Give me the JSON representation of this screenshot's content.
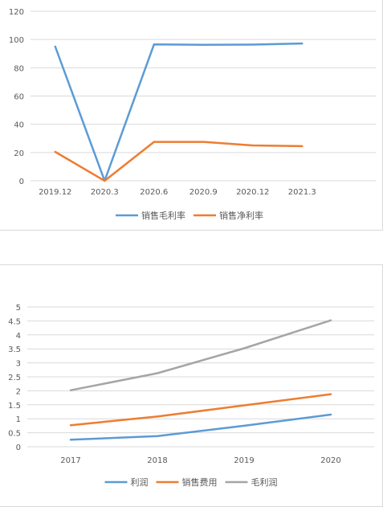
{
  "chart_data": [
    {
      "type": "line",
      "title": "",
      "categories": [
        "2019.12",
        "2020.3",
        "2020.6",
        "2020.9",
        "2020.12",
        "2021.3"
      ],
      "ylim": [
        0,
        120
      ],
      "yticks": [
        "0",
        "20",
        "40",
        "60",
        "80",
        "100",
        "120"
      ],
      "grid": true,
      "legend_position": "bottom",
      "series": [
        {
          "name": "销售毛利率",
          "color": "#5b9bd5",
          "values": [
            95,
            0,
            96.5,
            96.3,
            96.4,
            97.2
          ]
        },
        {
          "name": "销售净利率",
          "color": "#ed7d31",
          "values": [
            20.5,
            0,
            27.5,
            27.5,
            25,
            24.5
          ]
        }
      ]
    },
    {
      "type": "line",
      "title": "",
      "categories": [
        "2017",
        "2018",
        "2019",
        "2020"
      ],
      "ylim": [
        0,
        5
      ],
      "yticks": [
        "0",
        "0.5",
        "1",
        "1.5",
        "2",
        "2.5",
        "3",
        "3.5",
        "4",
        "4.5",
        "5"
      ],
      "grid": true,
      "legend_position": "bottom",
      "series": [
        {
          "name": "利润",
          "color": "#5b9bd5",
          "values": [
            0.25,
            0.38,
            0.75,
            1.15
          ]
        },
        {
          "name": "销售费用",
          "color": "#ed7d31",
          "values": [
            0.77,
            1.08,
            1.48,
            1.88
          ]
        },
        {
          "name": "毛利润",
          "color": "#a5a5a5",
          "values": [
            2.02,
            2.63,
            3.52,
            4.52
          ]
        }
      ]
    }
  ]
}
